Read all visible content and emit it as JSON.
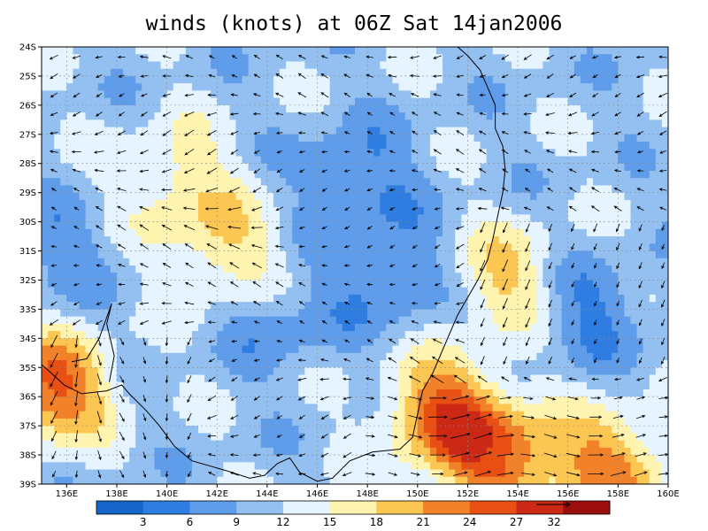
{
  "title": "winds (knots) at 06Z Sat 14jan2006",
  "map": {
    "lat_labels": [
      "24S",
      "25S",
      "26S",
      "27S",
      "28S",
      "29S",
      "30S",
      "31S",
      "32S",
      "33S",
      "34S",
      "35S",
      "36S",
      "37S",
      "38S",
      "39S"
    ],
    "lon_labels": [
      "136E",
      "138E",
      "140E",
      "142E",
      "144E",
      "146E",
      "148E",
      "150E",
      "152E",
      "154E",
      "156E",
      "158E",
      "160E"
    ],
    "lat_range": [
      -39,
      -24
    ],
    "lon_range": [
      135,
      160
    ],
    "grid": true,
    "coastline": "Australia south-east coast",
    "vectors": "wind arrows"
  },
  "colorbar": {
    "labels": [
      "3",
      "6",
      "9",
      "12",
      "15",
      "18",
      "21",
      "24",
      "27"
    ],
    "reference_vector": "32",
    "colors": [
      "#1565c8",
      "#2f7de0",
      "#5f9cea",
      "#93c0f0",
      "#e6f4ff",
      "#fff3b0",
      "#fcc653",
      "#f2822a",
      "#e84f13",
      "#cc2816",
      "#9c0e0e"
    ]
  },
  "chart_data": {
    "type": "heatmap",
    "title": "winds (knots) at 06Z Sat 14jan2006",
    "x_ticks": [
      "136E",
      "138E",
      "140E",
      "142E",
      "144E",
      "146E",
      "148E",
      "150E",
      "152E",
      "154E",
      "156E",
      "158E",
      "160E"
    ],
    "y_ticks": [
      "24S",
      "25S",
      "26S",
      "27S",
      "28S",
      "29S",
      "30S",
      "31S",
      "32S",
      "33S",
      "34S",
      "35S",
      "36S",
      "37S",
      "38S",
      "39S"
    ],
    "color_levels": [
      3,
      6,
      9,
      12,
      15,
      18,
      21,
      24,
      27
    ],
    "features": [
      {
        "lon": 135.4,
        "lat": -35.7,
        "speed": 25
      },
      {
        "lon": 151.2,
        "lat": -36.6,
        "speed": 26
      },
      {
        "lon": 153.5,
        "lat": -38.3,
        "speed": 23
      },
      {
        "lon": 157.8,
        "lat": -38.4,
        "speed": 22
      },
      {
        "lon": 153.5,
        "lat": -32.0,
        "speed": 19
      },
      {
        "lon": 142.2,
        "lat": -31.0,
        "speed": 18
      },
      {
        "lon": 140.4,
        "lat": -28.5,
        "speed": 17
      },
      {
        "lon": 147.5,
        "lat": -28.5,
        "speed": 5
      },
      {
        "lon": 149.0,
        "lat": -31.8,
        "speed": 5
      },
      {
        "lon": 156.8,
        "lat": -33.0,
        "speed": 5
      },
      {
        "lon": 144.5,
        "lat": -33.5,
        "speed": 7
      },
      {
        "lon": 135.6,
        "lat": -31.0,
        "speed": 7
      }
    ]
  }
}
